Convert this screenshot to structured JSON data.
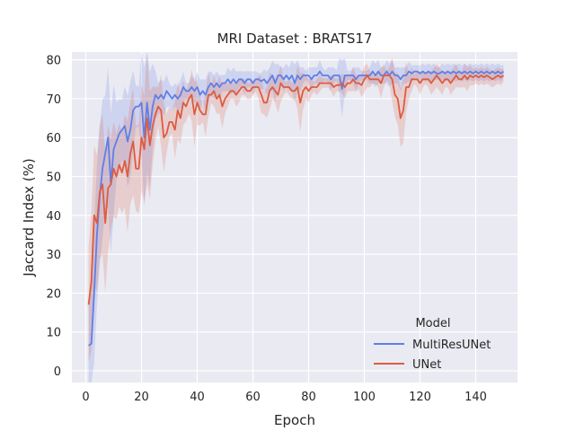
{
  "chart_data": {
    "type": "line",
    "title": "MRI Dataset : BRATS17",
    "xlabel": "Epoch",
    "ylabel": "Jaccard Index (%)",
    "xlim": [
      -5,
      155
    ],
    "ylim": [
      -3,
      82
    ],
    "x_ticks": [
      0,
      20,
      40,
      60,
      80,
      100,
      120,
      140
    ],
    "y_ticks": [
      0,
      10,
      20,
      30,
      40,
      50,
      60,
      70,
      80
    ],
    "grid": true,
    "legend": {
      "title": "Model",
      "placement": "lower-right"
    },
    "series": [
      {
        "name": "MultiResUNet",
        "color": "#5f7fe6",
        "band_color": "#5f7fe6",
        "points": [
          [
            1,
            6.5
          ],
          [
            2,
            7
          ],
          [
            3,
            20
          ],
          [
            4,
            35
          ],
          [
            5,
            45
          ],
          [
            6,
            52
          ],
          [
            7,
            56
          ],
          [
            8,
            60
          ],
          [
            9,
            48
          ],
          [
            10,
            57
          ],
          [
            11,
            59
          ],
          [
            12,
            61
          ],
          [
            13,
            62
          ],
          [
            14,
            63
          ],
          [
            15,
            59
          ],
          [
            16,
            62
          ],
          [
            17,
            67
          ],
          [
            18,
            68
          ],
          [
            19,
            68
          ],
          [
            20,
            69
          ],
          [
            21,
            60
          ],
          [
            22,
            69
          ],
          [
            23,
            62
          ],
          [
            24,
            68
          ],
          [
            25,
            71
          ],
          [
            26,
            70
          ],
          [
            27,
            71
          ],
          [
            28,
            70
          ],
          [
            29,
            72
          ],
          [
            30,
            71
          ],
          [
            31,
            70
          ],
          [
            32,
            71
          ],
          [
            33,
            70
          ],
          [
            34,
            71
          ],
          [
            35,
            73
          ],
          [
            36,
            72
          ],
          [
            37,
            72
          ],
          [
            38,
            73
          ],
          [
            39,
            72
          ],
          [
            40,
            73
          ],
          [
            41,
            71
          ],
          [
            42,
            72
          ],
          [
            43,
            71
          ],
          [
            44,
            73
          ],
          [
            45,
            74
          ],
          [
            46,
            73
          ],
          [
            47,
            74
          ],
          [
            48,
            73
          ],
          [
            49,
            74
          ],
          [
            50,
            74
          ],
          [
            51,
            75
          ],
          [
            52,
            74
          ],
          [
            53,
            75
          ],
          [
            54,
            74
          ],
          [
            55,
            75
          ],
          [
            56,
            75
          ],
          [
            57,
            74
          ],
          [
            58,
            75
          ],
          [
            59,
            75
          ],
          [
            60,
            74
          ],
          [
            61,
            75
          ],
          [
            62,
            75
          ],
          [
            63,
            74.5
          ],
          [
            64,
            75
          ],
          [
            65,
            74
          ],
          [
            66,
            75
          ],
          [
            67,
            76
          ],
          [
            68,
            74
          ],
          [
            69,
            76
          ],
          [
            70,
            76
          ],
          [
            71,
            75
          ],
          [
            72,
            76
          ],
          [
            73,
            75
          ],
          [
            74,
            76
          ],
          [
            75,
            74
          ],
          [
            76,
            76
          ],
          [
            77,
            75
          ],
          [
            78,
            76
          ],
          [
            79,
            76
          ],
          [
            80,
            76
          ],
          [
            81,
            75
          ],
          [
            82,
            76
          ],
          [
            83,
            76
          ],
          [
            84,
            77
          ],
          [
            85,
            76
          ],
          [
            86,
            76
          ],
          [
            87,
            76
          ],
          [
            88,
            75
          ],
          [
            89,
            76
          ],
          [
            90,
            76
          ],
          [
            91,
            76
          ],
          [
            92,
            72.5
          ],
          [
            93,
            76
          ],
          [
            94,
            76
          ],
          [
            95,
            76
          ],
          [
            96,
            76
          ],
          [
            97,
            75
          ],
          [
            98,
            76
          ],
          [
            99,
            76
          ],
          [
            100,
            76
          ],
          [
            101,
            76
          ],
          [
            102,
            76
          ],
          [
            103,
            77
          ],
          [
            104,
            76
          ],
          [
            105,
            77
          ],
          [
            106,
            76
          ],
          [
            107,
            76
          ],
          [
            108,
            77
          ],
          [
            109,
            76
          ],
          [
            110,
            77
          ],
          [
            111,
            76
          ],
          [
            112,
            76
          ],
          [
            113,
            75
          ],
          [
            114,
            76
          ],
          [
            115,
            76
          ],
          [
            116,
            77
          ],
          [
            117,
            76.5
          ],
          [
            118,
            77
          ],
          [
            119,
            77
          ],
          [
            120,
            76.5
          ],
          [
            121,
            77
          ],
          [
            122,
            76.5
          ],
          [
            123,
            77
          ],
          [
            124,
            76.5
          ],
          [
            125,
            77
          ],
          [
            126,
            76.5
          ],
          [
            127,
            76.5
          ],
          [
            128,
            77
          ],
          [
            129,
            76.5
          ],
          [
            130,
            77
          ],
          [
            131,
            76.5
          ],
          [
            132,
            77
          ],
          [
            133,
            76.5
          ],
          [
            134,
            77
          ],
          [
            135,
            76.5
          ],
          [
            136,
            77
          ],
          [
            137,
            76.5
          ],
          [
            138,
            77
          ],
          [
            139,
            76.5
          ],
          [
            140,
            77
          ],
          [
            141,
            76.5
          ],
          [
            142,
            77
          ],
          [
            143,
            76.5
          ],
          [
            144,
            77
          ],
          [
            145,
            76.5
          ],
          [
            146,
            77
          ],
          [
            147,
            76.5
          ],
          [
            148,
            77
          ],
          [
            149,
            76.5
          ],
          [
            150,
            77
          ]
        ]
      },
      {
        "name": "UNet",
        "color": "#dd5c40",
        "band_color": "#dd5c40",
        "points": [
          [
            1,
            17
          ],
          [
            2,
            23
          ],
          [
            3,
            40
          ],
          [
            4,
            38
          ],
          [
            5,
            46
          ],
          [
            6,
            48
          ],
          [
            7,
            38
          ],
          [
            8,
            47
          ],
          [
            9,
            48
          ],
          [
            10,
            52
          ],
          [
            11,
            50
          ],
          [
            12,
            53
          ],
          [
            13,
            51
          ],
          [
            14,
            54
          ],
          [
            15,
            50
          ],
          [
            16,
            56
          ],
          [
            17,
            59
          ],
          [
            18,
            52
          ],
          [
            19,
            52
          ],
          [
            20,
            60
          ],
          [
            21,
            57
          ],
          [
            22,
            65
          ],
          [
            23,
            58
          ],
          [
            24,
            63
          ],
          [
            25,
            66
          ],
          [
            26,
            68
          ],
          [
            27,
            67
          ],
          [
            28,
            60
          ],
          [
            29,
            61
          ],
          [
            30,
            64
          ],
          [
            31,
            64
          ],
          [
            32,
            62
          ],
          [
            33,
            67
          ],
          [
            34,
            65
          ],
          [
            35,
            69
          ],
          [
            36,
            68
          ],
          [
            37,
            70
          ],
          [
            38,
            71
          ],
          [
            39,
            66
          ],
          [
            40,
            69
          ],
          [
            41,
            67
          ],
          [
            42,
            66
          ],
          [
            43,
            66
          ],
          [
            44,
            71
          ],
          [
            45,
            71
          ],
          [
            46,
            72
          ],
          [
            47,
            70
          ],
          [
            48,
            71
          ],
          [
            49,
            68
          ],
          [
            50,
            70
          ],
          [
            51,
            71
          ],
          [
            52,
            72
          ],
          [
            53,
            72
          ],
          [
            54,
            71
          ],
          [
            55,
            72
          ],
          [
            56,
            73
          ],
          [
            57,
            73
          ],
          [
            58,
            72
          ],
          [
            59,
            72
          ],
          [
            60,
            73
          ],
          [
            61,
            73
          ],
          [
            62,
            73
          ],
          [
            63,
            71
          ],
          [
            64,
            69
          ],
          [
            65,
            69
          ],
          [
            66,
            72
          ],
          [
            67,
            73
          ],
          [
            68,
            72
          ],
          [
            69,
            71
          ],
          [
            70,
            74
          ],
          [
            71,
            73
          ],
          [
            72,
            73
          ],
          [
            73,
            73
          ],
          [
            74,
            72
          ],
          [
            75,
            72
          ],
          [
            76,
            73
          ],
          [
            77,
            69
          ],
          [
            78,
            72
          ],
          [
            79,
            73
          ],
          [
            80,
            72
          ],
          [
            81,
            73
          ],
          [
            82,
            73
          ],
          [
            83,
            73
          ],
          [
            84,
            74
          ],
          [
            85,
            74
          ],
          [
            86,
            74
          ],
          [
            87,
            74
          ],
          [
            88,
            74
          ],
          [
            89,
            73
          ],
          [
            90,
            73.5
          ],
          [
            91,
            73.5
          ],
          [
            92,
            74
          ],
          [
            93,
            73
          ],
          [
            94,
            74
          ],
          [
            95,
            74
          ],
          [
            96,
            75
          ],
          [
            97,
            74
          ],
          [
            98,
            74
          ],
          [
            99,
            73.5
          ],
          [
            100,
            75
          ],
          [
            101,
            76
          ],
          [
            102,
            75
          ],
          [
            103,
            75
          ],
          [
            104,
            75
          ],
          [
            105,
            75
          ],
          [
            106,
            74
          ],
          [
            107,
            76
          ],
          [
            108,
            76
          ],
          [
            109,
            76
          ],
          [
            110,
            75
          ],
          [
            111,
            71
          ],
          [
            112,
            70
          ],
          [
            113,
            65
          ],
          [
            114,
            67
          ],
          [
            115,
            73
          ],
          [
            116,
            73
          ],
          [
            117,
            75
          ],
          [
            118,
            75
          ],
          [
            119,
            75
          ],
          [
            120,
            74
          ],
          [
            121,
            75
          ],
          [
            122,
            75
          ],
          [
            123,
            75
          ],
          [
            124,
            74
          ],
          [
            125,
            75
          ],
          [
            126,
            76
          ],
          [
            127,
            75
          ],
          [
            128,
            74
          ],
          [
            129,
            75
          ],
          [
            130,
            75
          ],
          [
            131,
            74
          ],
          [
            132,
            75
          ],
          [
            133,
            76
          ],
          [
            134,
            75
          ],
          [
            135,
            75
          ],
          [
            136,
            76
          ],
          [
            137,
            75
          ],
          [
            138,
            76
          ],
          [
            139,
            75.5
          ],
          [
            140,
            76
          ],
          [
            141,
            75.5
          ],
          [
            142,
            76
          ],
          [
            143,
            75.5
          ],
          [
            144,
            76
          ],
          [
            145,
            75.5
          ],
          [
            146,
            75
          ],
          [
            147,
            75.5
          ],
          [
            148,
            76
          ],
          [
            149,
            75.5
          ],
          [
            150,
            76
          ]
        ]
      }
    ]
  }
}
